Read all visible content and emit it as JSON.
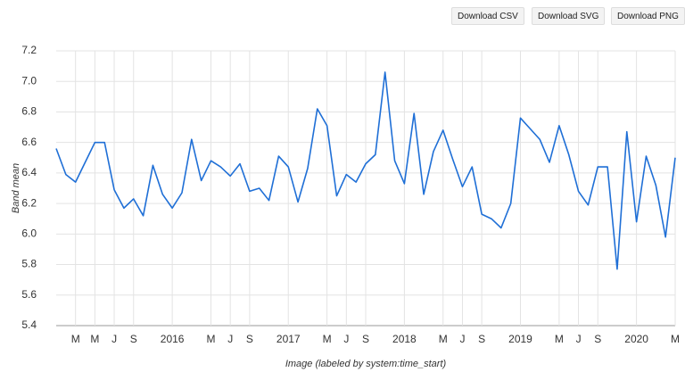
{
  "toolbar": {
    "buttons": [
      "Download CSV",
      "Download SVG",
      "Download PNG"
    ]
  },
  "chart_data": {
    "type": "line",
    "y_label": "Band mean",
    "x_label": "Image (labeled by system:time_start)",
    "color": "#1f6fd6",
    "grid": true,
    "x": [
      "2015-01",
      "2015-02",
      "2015-03",
      "2015-04",
      "2015-05",
      "2015-06",
      "2015-07",
      "2015-08",
      "2015-09",
      "2015-10",
      "2015-11",
      "2015-12",
      "2016-01",
      "2016-02",
      "2016-03",
      "2016-04",
      "2016-05",
      "2016-06",
      "2016-07",
      "2016-08",
      "2016-09",
      "2016-10",
      "2016-11",
      "2016-12",
      "2017-01",
      "2017-02",
      "2017-03",
      "2017-04",
      "2017-05",
      "2017-06",
      "2017-07",
      "2017-08",
      "2017-09",
      "2017-10",
      "2017-11",
      "2017-12",
      "2018-01",
      "2018-02",
      "2018-03",
      "2018-04",
      "2018-05",
      "2018-06",
      "2018-07",
      "2018-08",
      "2018-09",
      "2018-10",
      "2018-11",
      "2018-12",
      "2019-01",
      "2019-02",
      "2019-03",
      "2019-04",
      "2019-05",
      "2019-06",
      "2019-07",
      "2019-08",
      "2019-09",
      "2019-10",
      "2019-11",
      "2019-12",
      "2020-01",
      "2020-02",
      "2020-03",
      "2020-04",
      "2020-05"
    ],
    "values": [
      6.56,
      6.39,
      6.34,
      6.47,
      6.6,
      6.6,
      6.29,
      6.17,
      6.23,
      6.12,
      6.45,
      6.26,
      6.17,
      6.27,
      6.62,
      6.35,
      6.48,
      6.44,
      6.38,
      6.46,
      6.28,
      6.3,
      6.22,
      6.51,
      6.44,
      6.21,
      6.43,
      6.82,
      6.71,
      6.25,
      6.39,
      6.34,
      6.46,
      6.52,
      7.06,
      6.48,
      6.33,
      6.79,
      6.26,
      6.54,
      6.68,
      6.49,
      6.31,
      6.44,
      6.13,
      6.1,
      6.04,
      6.2,
      6.76,
      6.69,
      6.62,
      6.47,
      6.71,
      6.52,
      6.28,
      6.19,
      6.44,
      6.44,
      5.77,
      6.67,
      6.08,
      6.51,
      6.32,
      5.98,
      6.5
    ],
    "xlim": [
      "2015-01",
      "2020-05"
    ],
    "xticks": [
      {
        "value": "2015-03",
        "label": "M"
      },
      {
        "value": "2015-05",
        "label": "M"
      },
      {
        "value": "2015-07",
        "label": "J"
      },
      {
        "value": "2015-09",
        "label": "S"
      },
      {
        "value": "2016-01",
        "label": "2016"
      },
      {
        "value": "2016-05",
        "label": "M"
      },
      {
        "value": "2016-07",
        "label": "J"
      },
      {
        "value": "2016-09",
        "label": "S"
      },
      {
        "value": "2017-01",
        "label": "2017"
      },
      {
        "value": "2017-05",
        "label": "M"
      },
      {
        "value": "2017-07",
        "label": "J"
      },
      {
        "value": "2017-09",
        "label": "S"
      },
      {
        "value": "2018-01",
        "label": "2018"
      },
      {
        "value": "2018-05",
        "label": "M"
      },
      {
        "value": "2018-07",
        "label": "J"
      },
      {
        "value": "2018-09",
        "label": "S"
      },
      {
        "value": "2019-01",
        "label": "2019"
      },
      {
        "value": "2019-05",
        "label": "M"
      },
      {
        "value": "2019-07",
        "label": "J"
      },
      {
        "value": "2019-09",
        "label": "S"
      },
      {
        "value": "2020-01",
        "label": "2020"
      },
      {
        "value": "2020-05",
        "label": "M"
      }
    ],
    "ylim": [
      5.4,
      7.2
    ],
    "yticks": [
      5.4,
      5.6,
      5.8,
      {
        "value": 6,
        "label": "6.0"
      },
      6.2,
      6.4,
      6.6,
      6.8,
      {
        "value": 7,
        "label": "7.0"
      },
      7.2
    ]
  }
}
